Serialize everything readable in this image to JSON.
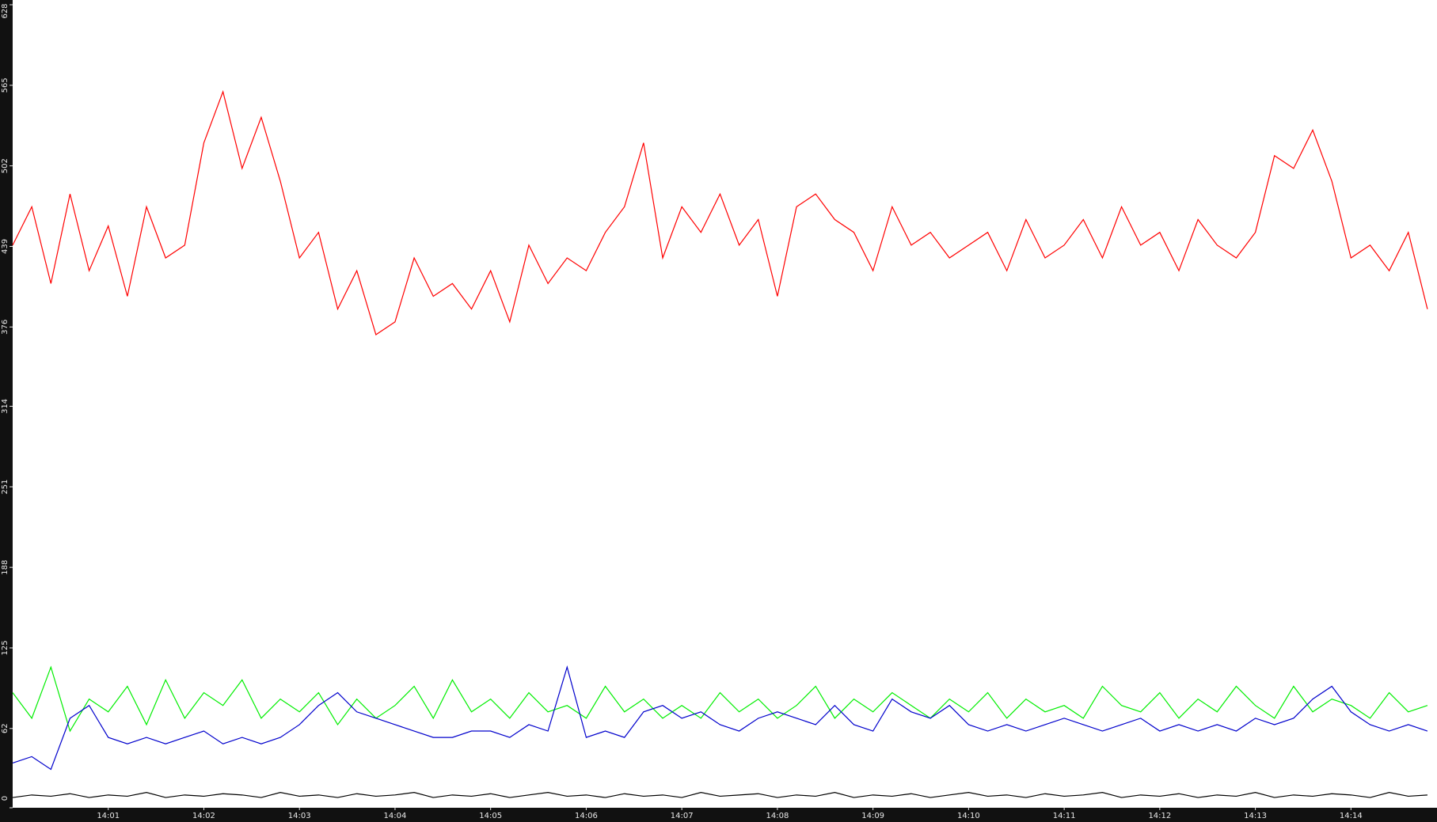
{
  "chart_data": {
    "type": "line",
    "x": [
      840,
      840.2,
      840.4,
      840.6,
      840.8,
      841,
      841.2,
      841.4,
      841.6,
      841.8,
      842,
      842.2,
      842.4,
      842.6,
      842.8,
      843,
      843.2,
      843.4,
      843.6,
      843.8,
      844,
      844.2,
      844.4,
      844.6,
      844.8,
      845,
      845.2,
      845.4,
      845.6,
      845.8,
      846,
      846.2,
      846.4,
      846.6,
      846.8,
      847,
      847.2,
      847.4,
      847.6,
      847.8,
      848,
      848.2,
      848.4,
      848.6,
      848.8,
      849,
      849.2,
      849.4,
      849.6,
      849.8,
      850,
      850.2,
      850.4,
      850.6,
      850.8,
      851,
      851.2,
      851.4,
      851.6,
      851.8,
      852,
      852.2,
      852.4,
      852.6,
      852.8,
      853,
      853.2,
      853.4,
      853.6,
      853.8,
      854,
      854.2,
      854.4,
      854.6,
      854.8
    ],
    "series": [
      {
        "color": "#ff0000",
        "values": [
          440,
          470,
          410,
          480,
          420,
          455,
          400,
          470,
          430,
          440,
          520,
          560,
          500,
          540,
          490,
          430,
          450,
          390,
          420,
          370,
          380,
          430,
          400,
          410,
          390,
          420,
          380,
          440,
          410,
          430,
          420,
          450,
          470,
          520,
          430,
          470,
          450,
          480,
          440,
          460,
          400,
          470,
          480,
          460,
          450,
          420,
          470,
          440,
          450,
          430,
          440,
          450,
          420,
          460,
          430,
          440,
          460,
          430,
          470,
          440,
          450,
          420,
          460,
          440,
          430,
          450,
          510,
          500,
          530,
          490,
          430,
          440,
          420,
          450,
          390
        ]
      },
      {
        "color": "#00ee00",
        "values": [
          90,
          70,
          110,
          60,
          85,
          75,
          95,
          65,
          100,
          70,
          90,
          80,
          100,
          70,
          85,
          75,
          90,
          65,
          85,
          70,
          80,
          95,
          70,
          100,
          75,
          85,
          70,
          90,
          75,
          80,
          70,
          95,
          75,
          85,
          70,
          80,
          70,
          90,
          75,
          85,
          70,
          80,
          95,
          70,
          85,
          75,
          90,
          80,
          70,
          85,
          75,
          90,
          70,
          85,
          75,
          80,
          70,
          95,
          80,
          75,
          90,
          70,
          85,
          75,
          95,
          80,
          70,
          95,
          75,
          85,
          80,
          70,
          90,
          75,
          80
        ]
      },
      {
        "color": "#0000cc",
        "values": [
          35,
          40,
          30,
          70,
          80,
          55,
          50,
          55,
          50,
          55,
          60,
          50,
          55,
          50,
          55,
          65,
          80,
          90,
          75,
          70,
          65,
          60,
          55,
          55,
          60,
          60,
          55,
          65,
          60,
          110,
          55,
          60,
          55,
          75,
          80,
          70,
          75,
          65,
          60,
          70,
          75,
          70,
          65,
          80,
          65,
          60,
          85,
          75,
          70,
          80,
          65,
          60,
          65,
          60,
          65,
          70,
          65,
          60,
          65,
          70,
          60,
          65,
          60,
          65,
          60,
          70,
          65,
          70,
          85,
          95,
          75,
          65,
          60,
          65,
          60
        ]
      },
      {
        "color": "#000000",
        "values": [
          8,
          10,
          9,
          11,
          8,
          10,
          9,
          12,
          8,
          10,
          9,
          11,
          10,
          8,
          12,
          9,
          10,
          8,
          11,
          9,
          10,
          12,
          8,
          10,
          9,
          11,
          8,
          10,
          12,
          9,
          10,
          8,
          11,
          9,
          10,
          8,
          12,
          9,
          10,
          11,
          8,
          10,
          9,
          12,
          8,
          10,
          9,
          11,
          8,
          10,
          12,
          9,
          10,
          8,
          11,
          9,
          10,
          12,
          8,
          10,
          9,
          11,
          8,
          10,
          9,
          12,
          8,
          10,
          9,
          11,
          10,
          8,
          12,
          9,
          10
        ]
      }
    ],
    "xlim": [
      840,
      854.9
    ],
    "xticks": [
      {
        "value": 841,
        "label": "14:01"
      },
      {
        "value": 842,
        "label": "14:02"
      },
      {
        "value": 843,
        "label": "14:03"
      },
      {
        "value": 844,
        "label": "14:04"
      },
      {
        "value": 845,
        "label": "14:05"
      },
      {
        "value": 846,
        "label": "14:06"
      },
      {
        "value": 847,
        "label": "14:07"
      },
      {
        "value": 848,
        "label": "14:08"
      },
      {
        "value": 849,
        "label": "14:09"
      },
      {
        "value": 850,
        "label": "14:10"
      },
      {
        "value": 851,
        "label": "14:11"
      },
      {
        "value": 852,
        "label": "14:12"
      },
      {
        "value": 853,
        "label": "14:13"
      },
      {
        "value": 854,
        "label": "14:14"
      }
    ],
    "ylim": [
      0,
      628
    ],
    "yticks": [
      0,
      62,
      125,
      188,
      251,
      314,
      376,
      439,
      502,
      565,
      628
    ]
  }
}
